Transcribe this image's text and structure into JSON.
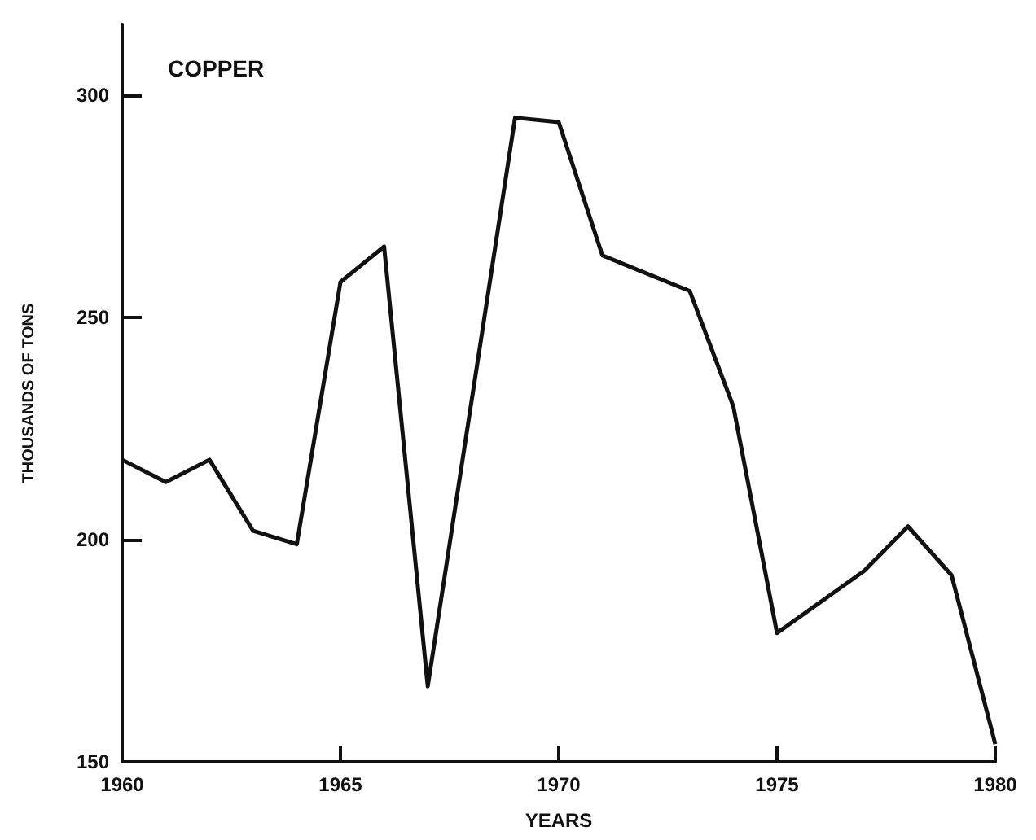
{
  "chart_data": {
    "type": "line",
    "title": "COPPER",
    "xlabel": "YEARS",
    "ylabel": "THOUSANDS OF TONS",
    "x": [
      1960,
      1961,
      1962,
      1963,
      1964,
      1965,
      1966,
      1967,
      1969,
      1970,
      1971,
      1973,
      1974,
      1975,
      1977,
      1978,
      1979,
      1980
    ],
    "series": [
      {
        "color": "#111111",
        "values": [
          218,
          213,
          218,
          202,
          199,
          258,
          266,
          167,
          295,
          294,
          264,
          256,
          230,
          179,
          193,
          203,
          192,
          154
        ]
      }
    ],
    "xlim": [
      1960,
      1980
    ],
    "xticks": [
      1960,
      1965,
      1970,
      1975,
      1980
    ],
    "ylim": [
      150,
      316
    ],
    "yticks": [
      150,
      200,
      250,
      300
    ],
    "marker": "none",
    "line_style": "solid"
  }
}
